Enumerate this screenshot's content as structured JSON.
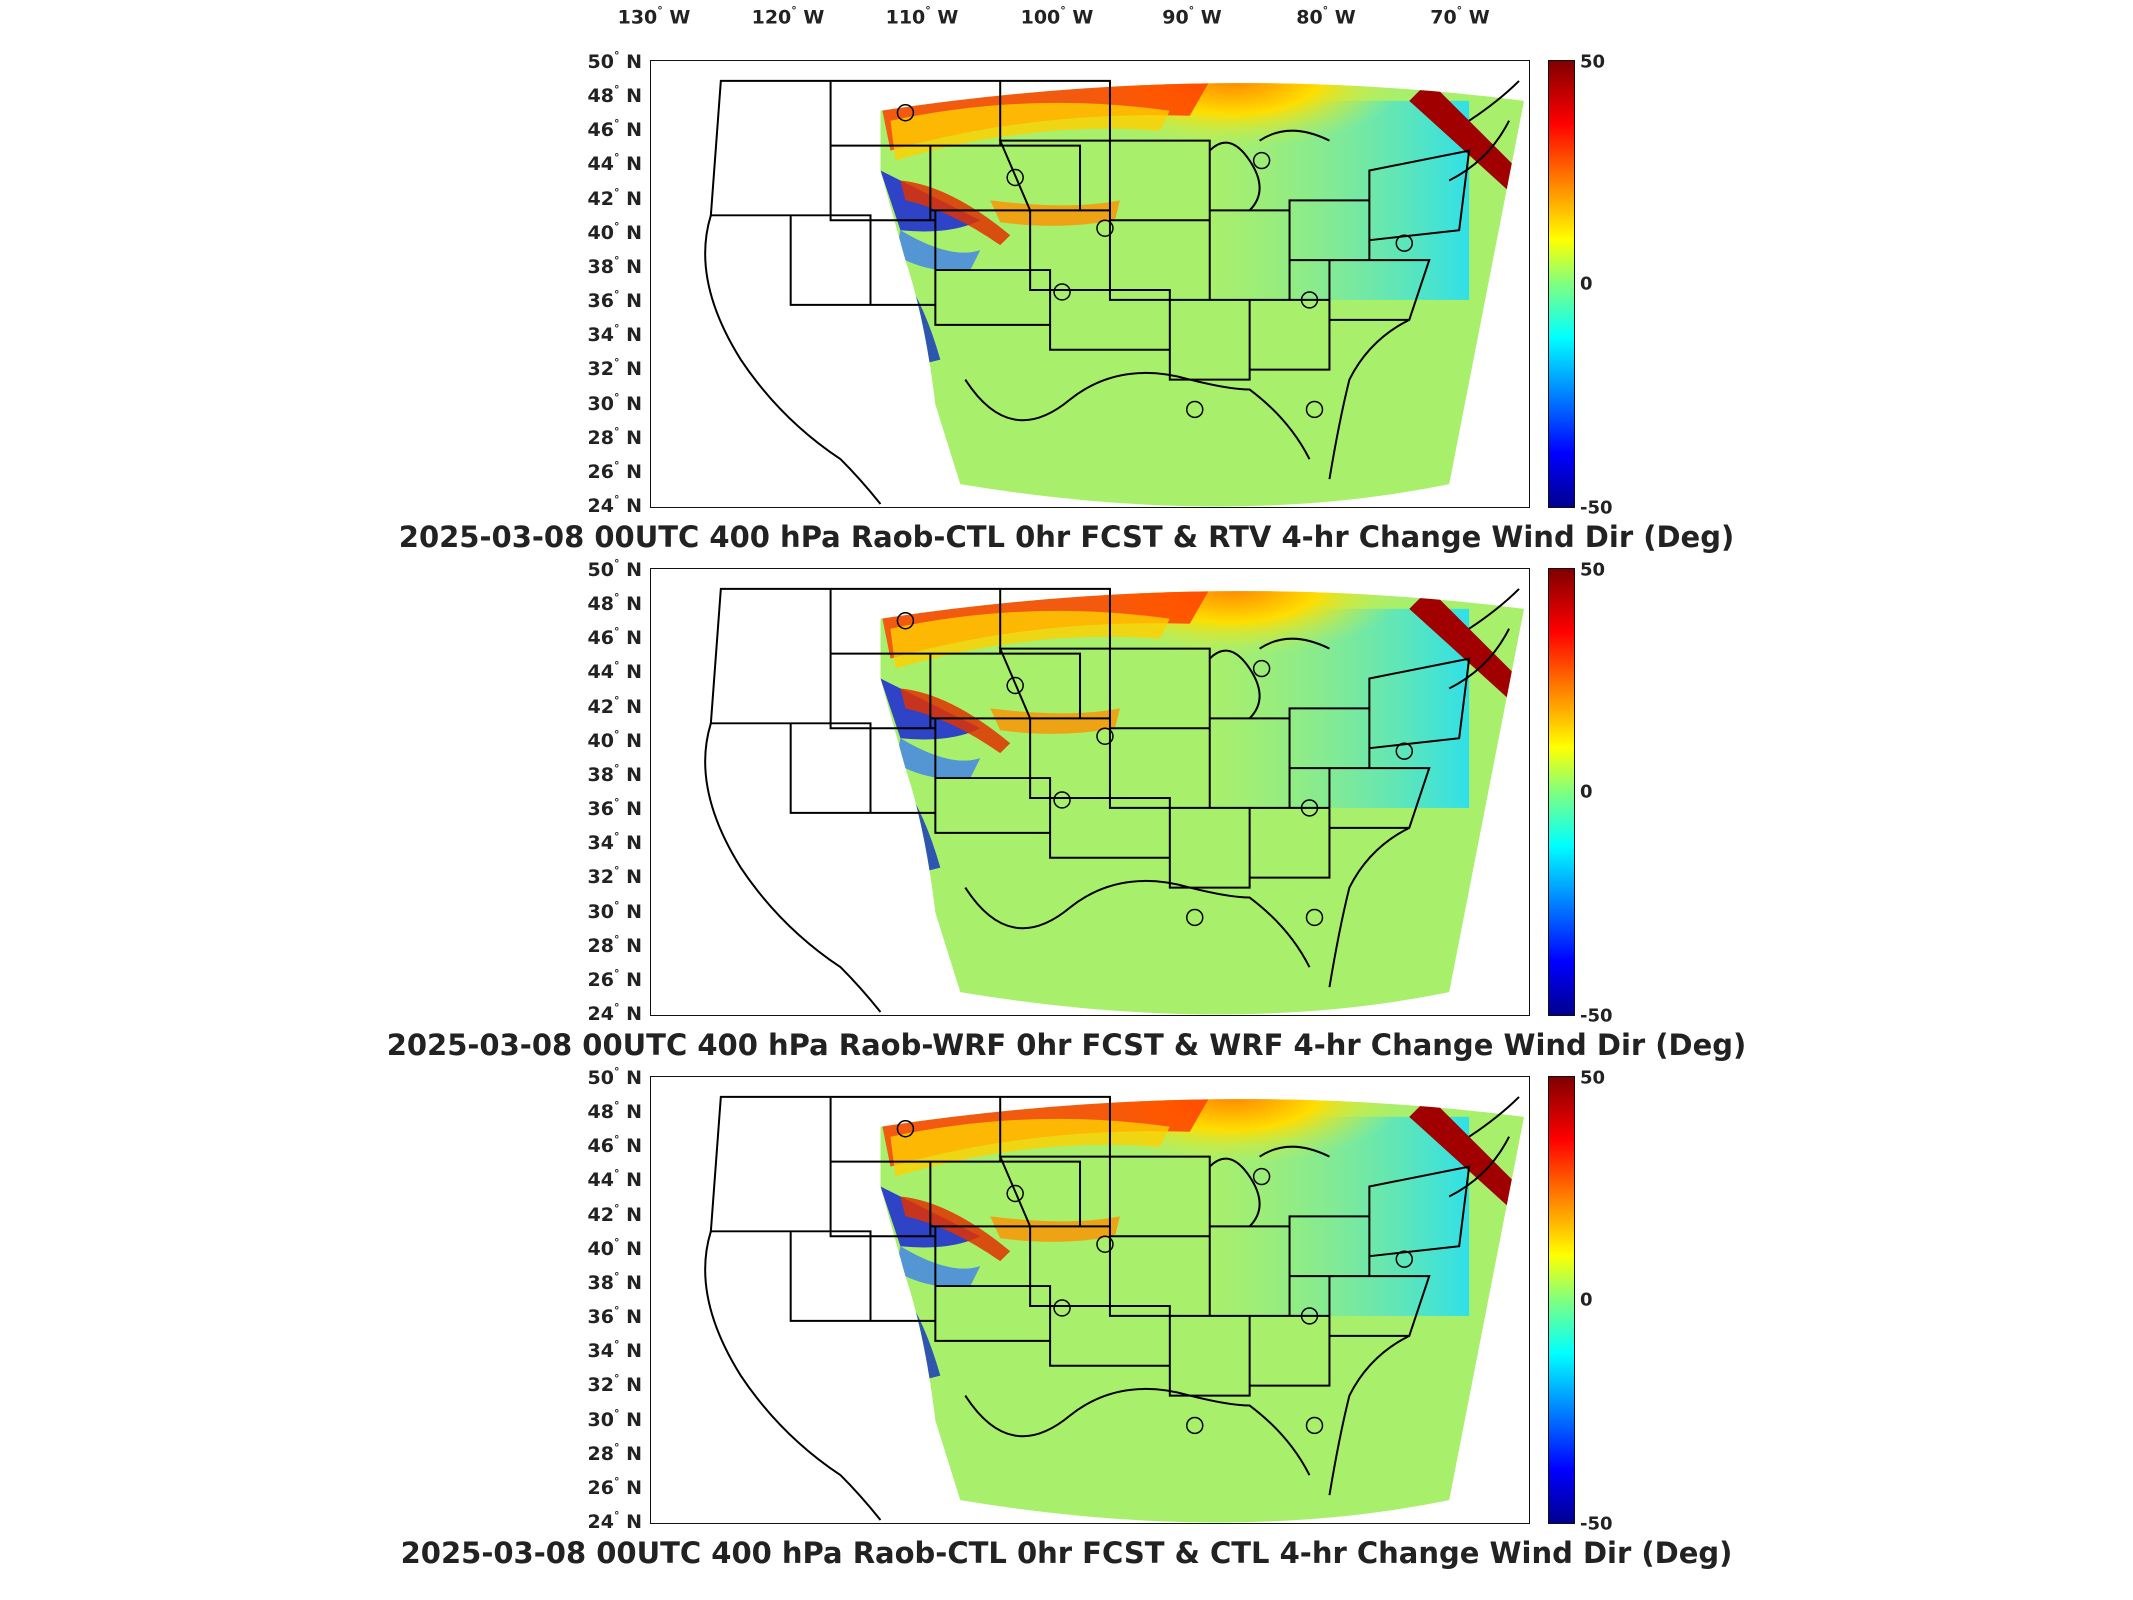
{
  "lon_labels": [
    "130",
    "120",
    "110",
    "100",
    "90",
    "80",
    "70"
  ],
  "lon_suffix": "W",
  "lat_labels": [
    "50",
    "48",
    "46",
    "44",
    "42",
    "40",
    "38",
    "36",
    "34",
    "32",
    "30",
    "28",
    "26",
    "24"
  ],
  "lat_suffix": "N",
  "colorbar": {
    "max": "50",
    "mid": "0",
    "min": "-50",
    "colors": [
      "#800000",
      "#ff0000",
      "#ff8000",
      "#ffff00",
      "#80ff80",
      "#00ffff",
      "#0080ff",
      "#0000ff",
      "#00008f"
    ]
  },
  "panels": [
    {
      "title": "2025-03-08 00UTC 400 hPa Raob-CTL 0hr FCST & RTV 4-hr Change Wind Dir (Deg)"
    },
    {
      "title": "2025-03-08 00UTC 400 hPa Raob-WRF 0hr FCST & WRF 4-hr Change Wind Dir (Deg)"
    },
    {
      "title": "2025-03-08 00UTC 400 hPa Raob-CTL 0hr FCST & CTL 4-hr Change Wind Dir (Deg)"
    }
  ],
  "degree_symbol": "°"
}
